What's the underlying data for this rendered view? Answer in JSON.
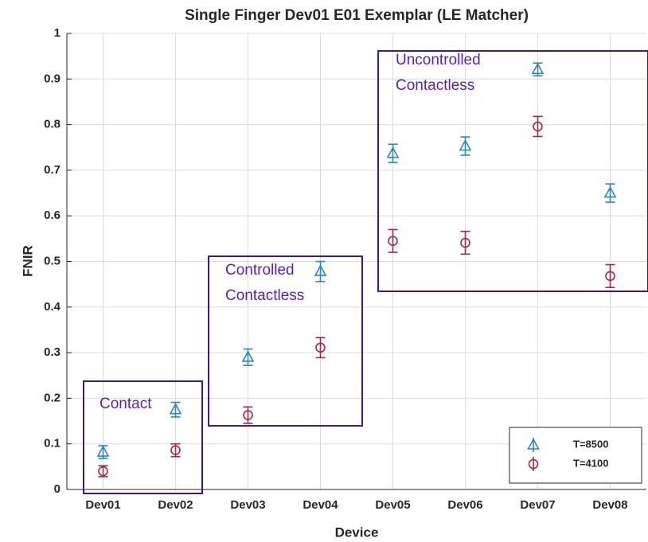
{
  "chart_data": {
    "type": "errorbar_scatter",
    "title": "Single Finger Dev01 E01 Exemplar (LE Matcher)",
    "xlabel": "Device",
    "ylabel": "FNIR",
    "categories": [
      "Dev01",
      "Dev02",
      "Dev03",
      "Dev04",
      "Dev05",
      "Dev06",
      "Dev07",
      "Dev08"
    ],
    "series": [
      {
        "name": "T=8500",
        "color": "#2e86b8",
        "marker": "triangle",
        "values": [
          0.082,
          0.175,
          0.29,
          0.478,
          0.737,
          0.753,
          0.921,
          0.65
        ],
        "errors": [
          0.014,
          0.016,
          0.018,
          0.022,
          0.02,
          0.02,
          0.014,
          0.02
        ]
      },
      {
        "name": "T=4100",
        "color": "#a2284a",
        "marker": "circle",
        "values": [
          0.04,
          0.086,
          0.163,
          0.311,
          0.545,
          0.541,
          0.796,
          0.468
        ],
        "errors": [
          0.012,
          0.014,
          0.018,
          0.022,
          0.025,
          0.025,
          0.022,
          0.025
        ]
      }
    ],
    "ylim": [
      0,
      1
    ],
    "yticks": [
      0,
      0.1,
      0.2,
      0.3,
      0.4,
      0.5,
      0.6,
      0.7,
      0.8,
      0.9,
      1
    ],
    "grid": true,
    "legend": "lower right",
    "annotations": [
      {
        "lines": [
          "Contact"
        ]
      },
      {
        "lines": [
          "Controlled",
          "Contactless"
        ]
      },
      {
        "lines": [
          "Uncontrolled",
          "Contactless"
        ]
      }
    ]
  }
}
